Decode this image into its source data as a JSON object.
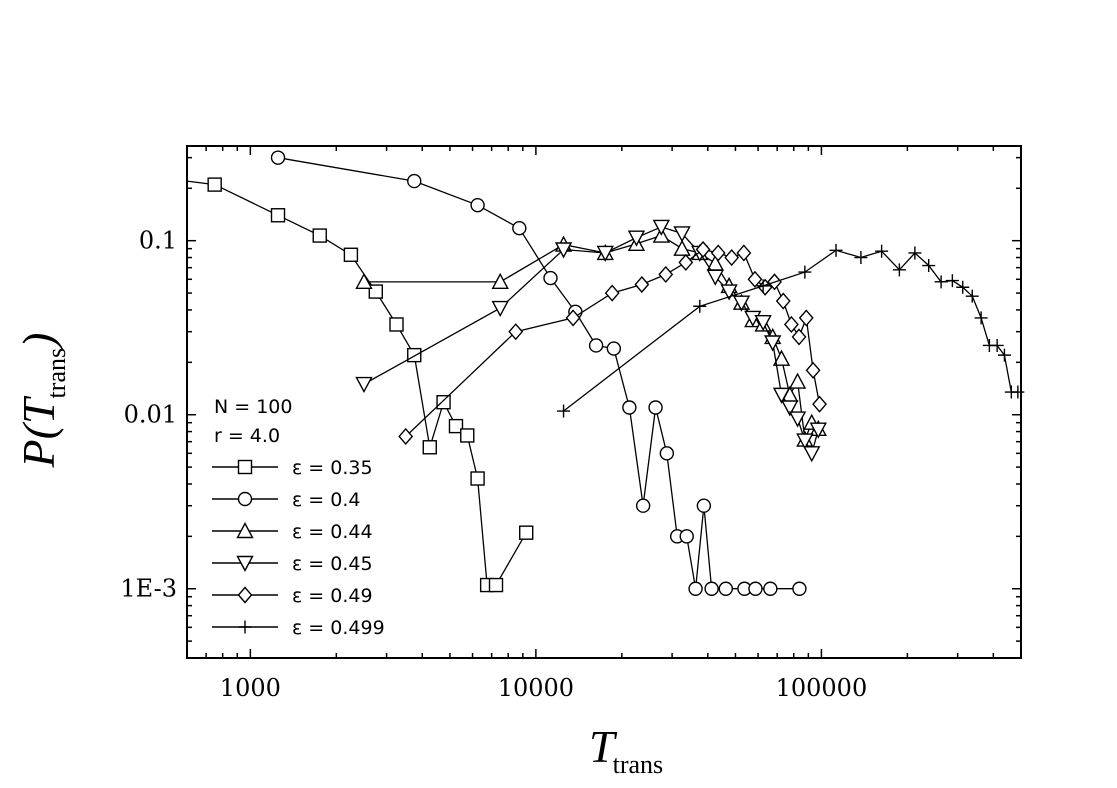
{
  "chart_data": {
    "type": "scatter",
    "xscale": "log",
    "yscale": "log",
    "xlim": [
      600,
      500000
    ],
    "ylim": [
      0.0004,
      0.35
    ],
    "xticks": [
      1000,
      10000,
      100000
    ],
    "xtick_labels": [
      "1000",
      "10000",
      "100000"
    ],
    "yticks": [
      0.001,
      0.01,
      0.1
    ],
    "ytick_labels": [
      "1E-3",
      "0.01",
      "0.1"
    ],
    "xlabel": {
      "main": "T",
      "sub": "trans"
    },
    "ylabel": {
      "prefix": "P(",
      "main": "T",
      "sub": "trans",
      "suffix": ")"
    },
    "grid": false,
    "legend_position": "bottom-left",
    "annotations": [
      "N = 100",
      "r = 4.0"
    ],
    "series": [
      {
        "name": "ε = 0.35",
        "marker": "square",
        "line": "solid",
        "points": [
          [
            600,
            0.22
          ],
          [
            750,
            0.21
          ],
          [
            1250,
            0.14
          ],
          [
            1750,
            0.107
          ],
          [
            2250,
            0.083
          ],
          [
            2750,
            0.051
          ],
          [
            3250,
            0.033
          ],
          [
            3750,
            0.022
          ],
          [
            4250,
            0.0065
          ],
          [
            4750,
            0.0118
          ],
          [
            5250,
            0.0086
          ],
          [
            5750,
            0.0076
          ],
          [
            6250,
            0.0043
          ],
          [
            6750,
            0.00105
          ],
          [
            7250,
            0.00105
          ],
          [
            9250,
            0.0021
          ]
        ]
      },
      {
        "name": "ε = 0.4",
        "marker": "circle",
        "line": "solid",
        "points": [
          [
            1250,
            0.3
          ],
          [
            3750,
            0.22
          ],
          [
            6250,
            0.16
          ],
          [
            8750,
            0.118
          ],
          [
            11250,
            0.061
          ],
          [
            13750,
            0.039
          ],
          [
            16250,
            0.025
          ],
          [
            18750,
            0.024
          ],
          [
            21250,
            0.011
          ],
          [
            23750,
            0.003
          ],
          [
            26250,
            0.011
          ],
          [
            28750,
            0.006
          ],
          [
            31250,
            0.002
          ],
          [
            33750,
            0.002
          ],
          [
            36250,
            0.001
          ],
          [
            38750,
            0.003
          ],
          [
            41250,
            0.001
          ],
          [
            46250,
            0.001
          ],
          [
            53750,
            0.001
          ],
          [
            58750,
            0.001
          ],
          [
            66250,
            0.001
          ],
          [
            83750,
            0.001
          ]
        ]
      },
      {
        "name": "ε = 0.44",
        "marker": "triangle-up",
        "line": "solid",
        "points": [
          [
            2500,
            0.058
          ],
          [
            7500,
            0.058
          ],
          [
            12500,
            0.095
          ],
          [
            17500,
            0.085
          ],
          [
            22500,
            0.096
          ],
          [
            27500,
            0.107
          ],
          [
            32500,
            0.09
          ],
          [
            37500,
            0.085
          ],
          [
            42500,
            0.074
          ],
          [
            47500,
            0.055
          ],
          [
            52500,
            0.044
          ],
          [
            57500,
            0.035
          ],
          [
            62500,
            0.033
          ],
          [
            67500,
            0.028
          ],
          [
            72500,
            0.021
          ],
          [
            77500,
            0.013
          ],
          [
            82500,
            0.0155
          ],
          [
            87500,
            0.0072
          ],
          [
            92500,
            0.009
          ],
          [
            97500,
            0.0083
          ]
        ]
      },
      {
        "name": "ε = 0.45",
        "marker": "triangle-down",
        "line": "solid",
        "points": [
          [
            2500,
            0.015
          ],
          [
            7500,
            0.041
          ],
          [
            12500,
            0.089
          ],
          [
            17500,
            0.085
          ],
          [
            22500,
            0.104
          ],
          [
            27500,
            0.12
          ],
          [
            32500,
            0.11
          ],
          [
            37500,
            0.085
          ],
          [
            42500,
            0.062
          ],
          [
            47500,
            0.051
          ],
          [
            52500,
            0.044
          ],
          [
            57500,
            0.036
          ],
          [
            62500,
            0.034
          ],
          [
            67500,
            0.026
          ],
          [
            72500,
            0.013
          ],
          [
            77500,
            0.011
          ],
          [
            82500,
            0.0095
          ],
          [
            87500,
            0.0071
          ],
          [
            92500,
            0.006
          ],
          [
            97500,
            0.0082
          ]
        ]
      },
      {
        "name": "ε = 0.49",
        "marker": "diamond",
        "line": "solid",
        "points": [
          [
            3500,
            0.0075
          ],
          [
            8500,
            0.03
          ],
          [
            13500,
            0.036
          ],
          [
            18500,
            0.05
          ],
          [
            23500,
            0.056
          ],
          [
            28500,
            0.064
          ],
          [
            33500,
            0.075
          ],
          [
            38500,
            0.089
          ],
          [
            43500,
            0.085
          ],
          [
            48500,
            0.08
          ],
          [
            53500,
            0.085
          ],
          [
            58500,
            0.06
          ],
          [
            63500,
            0.054
          ],
          [
            68500,
            0.058
          ],
          [
            73500,
            0.045
          ],
          [
            78500,
            0.033
          ],
          [
            83500,
            0.028
          ],
          [
            88500,
            0.036
          ],
          [
            93500,
            0.018
          ],
          [
            98500,
            0.0115
          ]
        ]
      },
      {
        "name": "ε = 0.499",
        "marker": "plus",
        "line": "solid",
        "points": [
          [
            12500,
            0.0105
          ],
          [
            37500,
            0.042
          ],
          [
            62500,
            0.055
          ],
          [
            87500,
            0.066
          ],
          [
            112500,
            0.088
          ],
          [
            137500,
            0.08
          ],
          [
            162500,
            0.087
          ],
          [
            187500,
            0.068
          ],
          [
            212500,
            0.085
          ],
          [
            237500,
            0.072
          ],
          [
            262500,
            0.058
          ],
          [
            287500,
            0.059
          ],
          [
            312500,
            0.054
          ],
          [
            337500,
            0.048
          ],
          [
            362500,
            0.036
          ],
          [
            387500,
            0.025
          ],
          [
            412500,
            0.025
          ],
          [
            437500,
            0.022
          ],
          [
            462500,
            0.0135
          ],
          [
            487500,
            0.0135
          ]
        ]
      }
    ]
  }
}
